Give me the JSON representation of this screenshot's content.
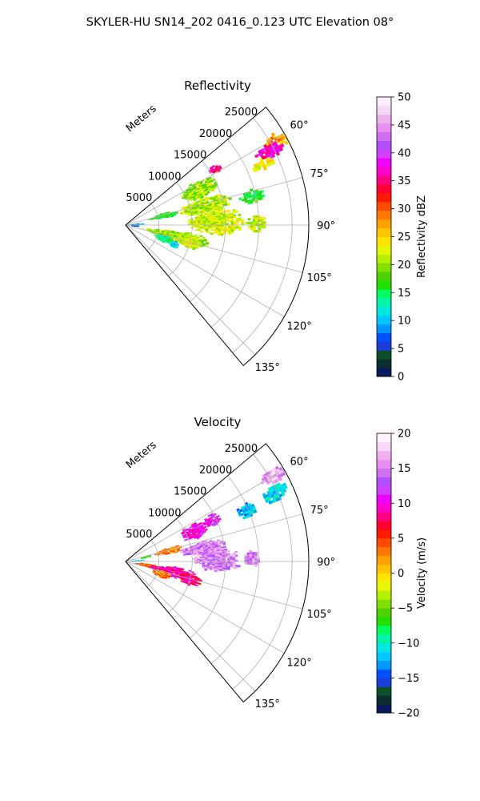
{
  "figure": {
    "suptitle": "SKYLER-HU  SN14_202  0416_0.123 UTC Elevation 08°"
  },
  "chart_data": [
    {
      "type": "heatmap",
      "projection": "polar-sector",
      "title": "Reflectivity",
      "range_axis_label": "Meters",
      "range_ticks": [
        5000,
        10000,
        15000,
        20000,
        25000
      ],
      "range_tick_labels": [
        "5000",
        "10000",
        "15000",
        "20000",
        "25000"
      ],
      "range_max": 27500,
      "azimuth_range_deg": [
        50,
        140
      ],
      "azimuth_ticks_deg": [
        60,
        75,
        90,
        105,
        120,
        135
      ],
      "azimuth_tick_labels": [
        "60°",
        "75°",
        "90°",
        "105°",
        "120°",
        "135°"
      ],
      "grid": true,
      "colorbar": {
        "label": "Reflectivity dBZ",
        "vmin": 0,
        "vmax": 50,
        "ticks": [
          0,
          5,
          10,
          15,
          20,
          25,
          30,
          35,
          40,
          45,
          50
        ],
        "tick_labels": [
          "0",
          "5",
          "10",
          "15",
          "20",
          "25",
          "30",
          "35",
          "40",
          "45",
          "50"
        ],
        "colors": [
          "#0a1a5c",
          "#0b2e2e",
          "#0d4f2a",
          "#1d3cd8",
          "#0050ff",
          "#0098ff",
          "#00c8ff",
          "#00e6e0",
          "#00f5a8",
          "#00ff60",
          "#22e000",
          "#4fd000",
          "#82e000",
          "#b4f000",
          "#e6f500",
          "#ffe400",
          "#ffc400",
          "#ffa000",
          "#ff7800",
          "#ff4a00",
          "#ff1a00",
          "#ff0030",
          "#ff0080",
          "#ff00c8",
          "#f000ff",
          "#d040ff",
          "#b050ff",
          "#d070f0",
          "#e890f0",
          "#f0b0f0",
          "#f8d8f8",
          "#fff0ff"
        ]
      },
      "regions": [
        {
          "az": [
            58,
            63
          ],
          "r": [
            23500,
            27500
          ],
          "value": 27
        },
        {
          "az": [
            60,
            65
          ],
          "r": [
            22000,
            26500
          ],
          "value": 37
        },
        {
          "az": [
            64,
            68
          ],
          "r": [
            20500,
            24500
          ],
          "value": 24
        },
        {
          "az": [
            74,
            80
          ],
          "r": [
            17500,
            21000
          ],
          "value": 16
        },
        {
          "az": [
            55,
            60
          ],
          "r": [
            14500,
            16500
          ],
          "value": 35
        },
        {
          "az": [
            58,
            70
          ],
          "r": [
            9000,
            15000
          ],
          "value": 20
        },
        {
          "az": [
            70,
            82
          ],
          "r": [
            8000,
            16000
          ],
          "value": 21
        },
        {
          "az": [
            80,
            96
          ],
          "r": [
            9000,
            17500
          ],
          "value": 22
        },
        {
          "az": [
            85,
            93
          ],
          "r": [
            18000,
            21000
          ],
          "value": 22
        },
        {
          "az": [
            72,
            80
          ],
          "r": [
            3500,
            8000
          ],
          "value": 16
        },
        {
          "az": [
            84,
            88
          ],
          "r": [
            500,
            2500
          ],
          "value": 10
        },
        {
          "az": [
            92,
            98
          ],
          "r": [
            500,
            2000
          ],
          "value": 6
        },
        {
          "az": [
            96,
            108
          ],
          "r": [
            2500,
            12500
          ],
          "value": 20
        },
        {
          "az": [
            100,
            110
          ],
          "r": [
            8000,
            11500
          ],
          "value": 22
        },
        {
          "az": [
            104,
            114
          ],
          "r": [
            4500,
            7500
          ],
          "value": 14
        },
        {
          "az": [
            108,
            115
          ],
          "r": [
            7000,
            8500
          ],
          "value": 11
        }
      ]
    },
    {
      "type": "heatmap",
      "projection": "polar-sector",
      "title": "Velocity",
      "range_axis_label": "Meters",
      "range_ticks": [
        5000,
        10000,
        15000,
        20000,
        25000
      ],
      "range_tick_labels": [
        "5000",
        "10000",
        "15000",
        "20000",
        "25000"
      ],
      "range_max": 27500,
      "azimuth_range_deg": [
        50,
        140
      ],
      "azimuth_ticks_deg": [
        60,
        75,
        90,
        105,
        120,
        135
      ],
      "azimuth_tick_labels": [
        "60°",
        "75°",
        "90°",
        "105°",
        "120°",
        "135°"
      ],
      "grid": true,
      "colorbar": {
        "label": "Velocity (m/s)",
        "vmin": -20,
        "vmax": 20,
        "ticks": [
          -20,
          -15,
          -10,
          -5,
          0,
          5,
          10,
          15,
          20
        ],
        "tick_labels": [
          "−20",
          "−15",
          "−10",
          "−5",
          "0",
          "5",
          "10",
          "15",
          "20"
        ],
        "colors": [
          "#0a1a5c",
          "#0b2e2e",
          "#0d4f2a",
          "#1d3cd8",
          "#0050ff",
          "#0098ff",
          "#00c8ff",
          "#00e6e0",
          "#00f5a8",
          "#00ff60",
          "#22e000",
          "#4fd000",
          "#82e000",
          "#b4f000",
          "#e6f500",
          "#ffe400",
          "#ffc400",
          "#ffa000",
          "#ff7800",
          "#ff4a00",
          "#ff1a00",
          "#ff0030",
          "#ff0080",
          "#ff00c8",
          "#f000ff",
          "#d040ff",
          "#b050ff",
          "#d070f0",
          "#e890f0",
          "#f0b0f0",
          "#f8d8f8",
          "#fff0ff"
        ]
      },
      "regions": [
        {
          "az": [
            57,
            62
          ],
          "r": [
            23500,
            27500
          ],
          "value": 16
        },
        {
          "az": [
            62,
            68
          ],
          "r": [
            22500,
            26500
          ],
          "value": -11
        },
        {
          "az": [
            64,
            70
          ],
          "r": [
            18000,
            21000
          ],
          "value": -12
        },
        {
          "az": [
            60,
            68
          ],
          "r": [
            13000,
            15500
          ],
          "value": 11
        },
        {
          "az": [
            60,
            72
          ],
          "r": [
            9000,
            13000
          ],
          "value": 10
        },
        {
          "az": [
            72,
            80
          ],
          "r": [
            4500,
            8500
          ],
          "value": 3
        },
        {
          "az": [
            75,
            85
          ],
          "r": [
            8000,
            15000
          ],
          "value": 15
        },
        {
          "az": [
            82,
            96
          ],
          "r": [
            10000,
            17000
          ],
          "value": 15
        },
        {
          "az": [
            85,
            92
          ],
          "r": [
            17500,
            20000
          ],
          "value": 15
        },
        {
          "az": [
            74,
            80
          ],
          "r": [
            2000,
            4000
          ],
          "value": -6
        },
        {
          "az": [
            84,
            88
          ],
          "r": [
            500,
            2500
          ],
          "value": -11
        },
        {
          "az": [
            95,
            105
          ],
          "r": [
            1500,
            5000
          ],
          "value": 4
        },
        {
          "az": [
            96,
            108
          ],
          "r": [
            3500,
            10500
          ],
          "value": 9
        },
        {
          "az": [
            100,
            110
          ],
          "r": [
            8000,
            11500
          ],
          "value": 8
        },
        {
          "az": [
            104,
            114
          ],
          "r": [
            4000,
            7000
          ],
          "value": 3
        }
      ]
    }
  ]
}
